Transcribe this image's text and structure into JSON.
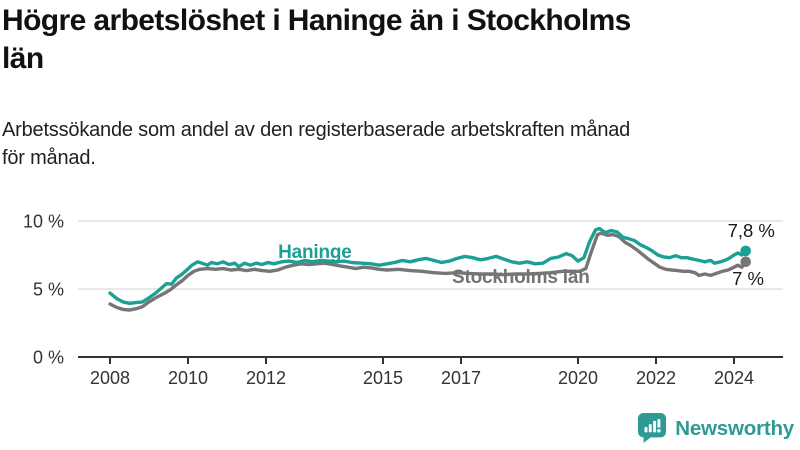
{
  "header": {
    "title": "Högre arbetslöshet i Haninge än i Stockholms län",
    "title_lines": [
      "Högre arbetslöshet i Haninge än i Stockholms",
      "län"
    ],
    "subtitle": "Arbetssökande som andel av den registerbaserade arbetskraften månad för månad.",
    "subtitle_lines": [
      "Arbetssökande som andel av den registerbaserade arbetskraften månad",
      "för månad."
    ]
  },
  "colors": {
    "haninge": "#1CA094",
    "stockholm": "#767676",
    "stockholm_label": "#737373",
    "axis": "#333333",
    "grid": "#d9d9d9",
    "text": "#1a1a1a",
    "logo": "#2F9A94"
  },
  "logo": {
    "text": "Newsworthy"
  },
  "chart_data": {
    "type": "line",
    "title": "Högre arbetslöshet i Haninge än i Stockholms län",
    "subtitle": "Arbetssökande som andel av den registerbaserade arbetskraften månad för månad.",
    "xlabel": "",
    "ylabel": "",
    "xlim": [
      2007.2,
      2025.3
    ],
    "ylim": [
      0,
      11.9
    ],
    "grid": "horizontal",
    "legend_position": "inline",
    "x_ticks": [
      "2008",
      "2010",
      "2012",
      "2015",
      "2017",
      "2020",
      "2022",
      "2024"
    ],
    "x_tick_values": [
      2008,
      2010,
      2012,
      2015,
      2017,
      2020,
      2022,
      2024
    ],
    "y_tick_labels": [
      "0 %",
      "5 %",
      "10 %"
    ],
    "y_tick_values": [
      0,
      5,
      10
    ],
    "grid_values": [
      5,
      10
    ],
    "series": [
      {
        "name": "Stockholms län",
        "slug": "stockholms-lan",
        "color": "#767676",
        "label": {
          "text": "Stockholms län",
          "year": 2016.77,
          "value": 5.44,
          "color": "#737373"
        },
        "end_label": {
          "text": "7 %",
          "year": 2024.77,
          "value": 5.3
        },
        "end_value": 7.0,
        "points": [
          [
            2008,
            3.9
          ],
          [
            2008.17,
            3.65
          ],
          [
            2008.33,
            3.5
          ],
          [
            2008.5,
            3.45
          ],
          [
            2008.67,
            3.55
          ],
          [
            2008.83,
            3.7
          ],
          [
            2009,
            4.05
          ],
          [
            2009.2,
            4.4
          ],
          [
            2009.4,
            4.7
          ],
          [
            2009.55,
            4.95
          ],
          [
            2009.7,
            5.3
          ],
          [
            2009.85,
            5.6
          ],
          [
            2010,
            6.0
          ],
          [
            2010.15,
            6.3
          ],
          [
            2010.3,
            6.45
          ],
          [
            2010.5,
            6.5
          ],
          [
            2010.7,
            6.45
          ],
          [
            2010.9,
            6.5
          ],
          [
            2011.1,
            6.4
          ],
          [
            2011.3,
            6.45
          ],
          [
            2011.5,
            6.35
          ],
          [
            2011.7,
            6.45
          ],
          [
            2011.9,
            6.35
          ],
          [
            2012.1,
            6.3
          ],
          [
            2012.3,
            6.4
          ],
          [
            2012.5,
            6.6
          ],
          [
            2012.7,
            6.75
          ],
          [
            2012.9,
            6.85
          ],
          [
            2013.1,
            6.8
          ],
          [
            2013.3,
            6.85
          ],
          [
            2013.5,
            6.9
          ],
          [
            2013.7,
            6.8
          ],
          [
            2013.9,
            6.7
          ],
          [
            2014.1,
            6.6
          ],
          [
            2014.3,
            6.5
          ],
          [
            2014.5,
            6.6
          ],
          [
            2014.7,
            6.55
          ],
          [
            2014.9,
            6.45
          ],
          [
            2015.1,
            6.4
          ],
          [
            2015.4,
            6.45
          ],
          [
            2015.7,
            6.35
          ],
          [
            2016,
            6.3
          ],
          [
            2016.3,
            6.2
          ],
          [
            2016.6,
            6.15
          ],
          [
            2016.9,
            6.2
          ],
          [
            2017.2,
            6.15
          ],
          [
            2017.5,
            6.1
          ],
          [
            2017.8,
            6.1
          ],
          [
            2018.1,
            6.05
          ],
          [
            2018.4,
            6.1
          ],
          [
            2018.7,
            6.1
          ],
          [
            2019,
            6.15
          ],
          [
            2019.3,
            6.2
          ],
          [
            2019.6,
            6.3
          ],
          [
            2019.9,
            6.3
          ],
          [
            2020.05,
            6.3
          ],
          [
            2020.2,
            6.5
          ],
          [
            2020.35,
            7.8
          ],
          [
            2020.5,
            9.0
          ],
          [
            2020.6,
            9.1
          ],
          [
            2020.75,
            8.95
          ],
          [
            2020.9,
            9.0
          ],
          [
            2021.05,
            8.85
          ],
          [
            2021.2,
            8.45
          ],
          [
            2021.35,
            8.2
          ],
          [
            2021.5,
            7.9
          ],
          [
            2021.65,
            7.55
          ],
          [
            2021.8,
            7.2
          ],
          [
            2021.95,
            6.9
          ],
          [
            2022.1,
            6.6
          ],
          [
            2022.25,
            6.45
          ],
          [
            2022.4,
            6.4
          ],
          [
            2022.55,
            6.35
          ],
          [
            2022.7,
            6.3
          ],
          [
            2022.85,
            6.3
          ],
          [
            2023,
            6.2
          ],
          [
            2023.1,
            6.0
          ],
          [
            2023.25,
            6.1
          ],
          [
            2023.4,
            6.0
          ],
          [
            2023.55,
            6.15
          ],
          [
            2023.7,
            6.3
          ],
          [
            2023.85,
            6.4
          ],
          [
            2024,
            6.6
          ],
          [
            2024.1,
            6.75
          ],
          [
            2024.2,
            6.6
          ],
          [
            2024.3,
            7.0
          ]
        ]
      },
      {
        "name": "Haninge",
        "slug": "haninge",
        "color": "#1CA094",
        "label": {
          "text": "Haninge",
          "year": 2012.31,
          "value": 7.28,
          "color": "#1CA094"
        },
        "end_label": {
          "text": "7,8 %",
          "year": 2025.05,
          "value": 8.83
        },
        "end_value": 7.8,
        "points": [
          [
            2008,
            4.7
          ],
          [
            2008.17,
            4.3
          ],
          [
            2008.33,
            4.05
          ],
          [
            2008.5,
            3.95
          ],
          [
            2008.67,
            4.0
          ],
          [
            2008.83,
            4.05
          ],
          [
            2009,
            4.35
          ],
          [
            2009.17,
            4.7
          ],
          [
            2009.33,
            5.1
          ],
          [
            2009.45,
            5.4
          ],
          [
            2009.58,
            5.35
          ],
          [
            2009.7,
            5.8
          ],
          [
            2009.83,
            6.05
          ],
          [
            2009.95,
            6.35
          ],
          [
            2010.1,
            6.75
          ],
          [
            2010.25,
            7.0
          ],
          [
            2010.4,
            6.85
          ],
          [
            2010.5,
            6.75
          ],
          [
            2010.6,
            6.95
          ],
          [
            2010.75,
            6.85
          ],
          [
            2010.9,
            7.0
          ],
          [
            2011.05,
            6.8
          ],
          [
            2011.2,
            6.9
          ],
          [
            2011.3,
            6.65
          ],
          [
            2011.45,
            6.9
          ],
          [
            2011.6,
            6.75
          ],
          [
            2011.75,
            6.9
          ],
          [
            2011.9,
            6.8
          ],
          [
            2012.05,
            6.95
          ],
          [
            2012.2,
            6.85
          ],
          [
            2012.4,
            7.0
          ],
          [
            2012.6,
            7.05
          ],
          [
            2012.8,
            6.95
          ],
          [
            2013,
            7.1
          ],
          [
            2013.2,
            7.0
          ],
          [
            2013.4,
            7.1
          ],
          [
            2013.6,
            7.05
          ],
          [
            2013.8,
            7.0
          ],
          [
            2014,
            7.05
          ],
          [
            2014.2,
            6.95
          ],
          [
            2014.45,
            6.9
          ],
          [
            2014.7,
            6.85
          ],
          [
            2014.9,
            6.75
          ],
          [
            2015.1,
            6.85
          ],
          [
            2015.3,
            6.95
          ],
          [
            2015.5,
            7.1
          ],
          [
            2015.7,
            7.0
          ],
          [
            2015.9,
            7.15
          ],
          [
            2016.1,
            7.25
          ],
          [
            2016.3,
            7.1
          ],
          [
            2016.5,
            6.95
          ],
          [
            2016.7,
            7.05
          ],
          [
            2016.9,
            7.25
          ],
          [
            2017.1,
            7.4
          ],
          [
            2017.3,
            7.3
          ],
          [
            2017.5,
            7.15
          ],
          [
            2017.7,
            7.25
          ],
          [
            2017.9,
            7.4
          ],
          [
            2018.1,
            7.2
          ],
          [
            2018.3,
            7.0
          ],
          [
            2018.5,
            6.9
          ],
          [
            2018.7,
            7.0
          ],
          [
            2018.9,
            6.85
          ],
          [
            2019.1,
            6.9
          ],
          [
            2019.3,
            7.25
          ],
          [
            2019.5,
            7.35
          ],
          [
            2019.7,
            7.6
          ],
          [
            2019.85,
            7.45
          ],
          [
            2020,
            7.05
          ],
          [
            2020.15,
            7.3
          ],
          [
            2020.3,
            8.5
          ],
          [
            2020.45,
            9.35
          ],
          [
            2020.55,
            9.45
          ],
          [
            2020.7,
            9.15
          ],
          [
            2020.85,
            9.3
          ],
          [
            2021,
            9.2
          ],
          [
            2021.15,
            8.8
          ],
          [
            2021.3,
            8.7
          ],
          [
            2021.45,
            8.55
          ],
          [
            2021.6,
            8.25
          ],
          [
            2021.75,
            8.05
          ],
          [
            2021.9,
            7.8
          ],
          [
            2022.05,
            7.5
          ],
          [
            2022.2,
            7.35
          ],
          [
            2022.35,
            7.3
          ],
          [
            2022.5,
            7.45
          ],
          [
            2022.65,
            7.3
          ],
          [
            2022.8,
            7.3
          ],
          [
            2022.95,
            7.2
          ],
          [
            2023.1,
            7.1
          ],
          [
            2023.25,
            7.0
          ],
          [
            2023.4,
            7.1
          ],
          [
            2023.5,
            6.9
          ],
          [
            2023.65,
            7.0
          ],
          [
            2023.8,
            7.15
          ],
          [
            2023.9,
            7.3
          ],
          [
            2024,
            7.5
          ],
          [
            2024.1,
            7.65
          ],
          [
            2024.2,
            7.5
          ],
          [
            2024.3,
            7.8
          ]
        ]
      }
    ]
  }
}
